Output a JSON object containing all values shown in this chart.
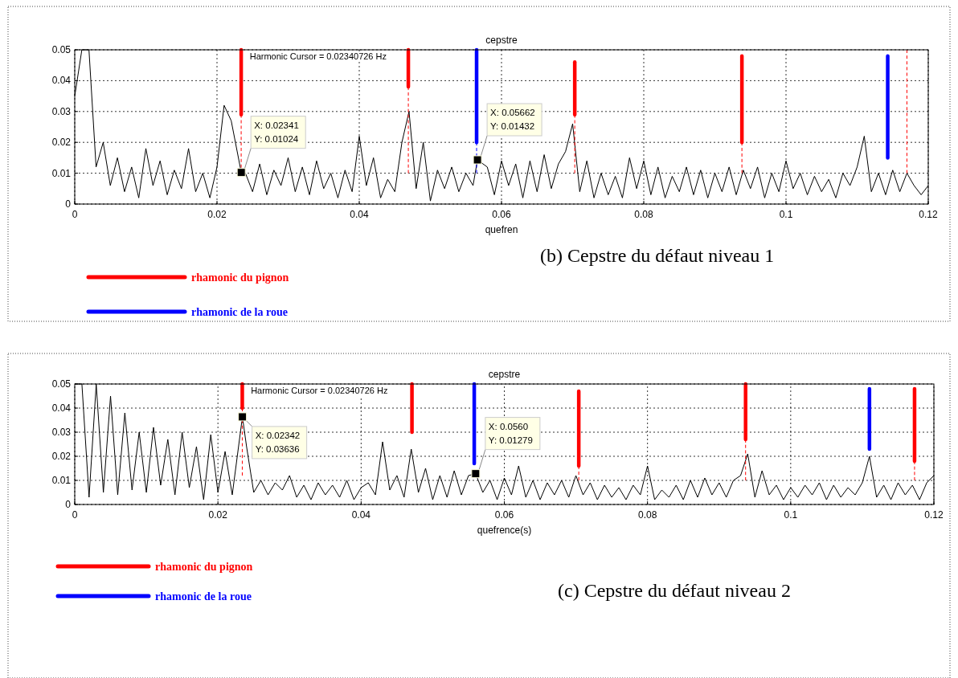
{
  "chart_data": [
    {
      "type": "line",
      "title": "cepstre",
      "xlabel": "quefren",
      "xlim": [
        0,
        0.12
      ],
      "ylim": [
        0,
        0.05
      ],
      "xticks": [
        0,
        {
          "value": 0.02,
          "label": "0.02"
        },
        {
          "value": 0.04,
          "label": "0.04"
        },
        {
          "value": 0.06,
          "label": "0.06"
        },
        {
          "value": 0.08,
          "label": "0.08"
        },
        {
          "value": 0.1,
          "label": "0.1"
        },
        {
          "value": 0.12,
          "label": "0.12"
        }
      ],
      "yticks": [
        0,
        {
          "value": 0.01,
          "label": "0.01"
        },
        {
          "value": 0.02,
          "label": "0.02"
        },
        {
          "value": 0.03,
          "label": "0.03"
        },
        {
          "value": 0.04,
          "label": "0.04"
        },
        {
          "value": 0.05,
          "label": "0.05"
        }
      ],
      "grid": true,
      "legend": "bottom left",
      "line_style": "solid",
      "marker": "none",
      "annotations": [
        "Harmonic Cursor = 0.02340726 Hz",
        "(b) Cepstre du défaut niveau 1",
        {
          "text": "X: 0.02341\nY: 0.01024",
          "x": 0.02341,
          "y": 0.01024
        },
        {
          "text": "X: 0.05662\nY: 0.01432",
          "x": 0.05662,
          "y": 0.01432
        }
      ],
      "series": [
        {
          "color": "#000000",
          "x": [
            0,
            0.001,
            0.002,
            0.003,
            0.004,
            0.005,
            0.006,
            0.007,
            0.008,
            0.009,
            0.01,
            0.011,
            0.012,
            0.013,
            0.014,
            0.015,
            0.016,
            0.017,
            0.018,
            0.019,
            0.02,
            0.021,
            0.022,
            0.02341,
            0.024,
            0.025,
            0.026,
            0.027,
            0.028,
            0.029,
            0.03,
            0.031,
            0.032,
            0.033,
            0.034,
            0.035,
            0.036,
            0.037,
            0.038,
            0.039,
            0.04,
            0.041,
            0.042,
            0.043,
            0.044,
            0.045,
            0.046,
            0.047,
            0.048,
            0.049,
            0.05,
            0.051,
            0.052,
            0.053,
            0.054,
            0.055,
            0.056,
            0.05662,
            0.058,
            0.059,
            0.06,
            0.061,
            0.062,
            0.063,
            0.064,
            0.065,
            0.066,
            0.067,
            0.068,
            0.069,
            0.07,
            0.071,
            0.072,
            0.073,
            0.074,
            0.075,
            0.076,
            0.077,
            0.078,
            0.079,
            0.08,
            0.081,
            0.082,
            0.083,
            0.084,
            0.085,
            0.086,
            0.087,
            0.088,
            0.089,
            0.09,
            0.091,
            0.092,
            0.093,
            0.094,
            0.095,
            0.096,
            0.097,
            0.098,
            0.099,
            0.1,
            0.101,
            0.102,
            0.103,
            0.104,
            0.105,
            0.106,
            0.107,
            0.108,
            0.109,
            0.11,
            0.111,
            0.112,
            0.113,
            0.114,
            0.115,
            0.116,
            0.117,
            0.118,
            0.119,
            0.12
          ],
          "values": [
            0.035,
            0.05,
            0.05,
            0.012,
            0.02,
            0.006,
            0.015,
            0.004,
            0.012,
            0.002,
            0.018,
            0.006,
            0.014,
            0.003,
            0.011,
            0.005,
            0.018,
            0.004,
            0.01,
            0.002,
            0.012,
            0.032,
            0.027,
            0.01024,
            0.01,
            0.004,
            0.013,
            0.003,
            0.011,
            0.006,
            0.015,
            0.004,
            0.012,
            0.003,
            0.014,
            0.005,
            0.01,
            0.002,
            0.011,
            0.004,
            0.022,
            0.006,
            0.015,
            0.002,
            0.008,
            0.004,
            0.02,
            0.03,
            0.005,
            0.02,
            0.001,
            0.011,
            0.005,
            0.012,
            0.004,
            0.01,
            0.006,
            0.01432,
            0.012,
            0.003,
            0.014,
            0.006,
            0.013,
            0.002,
            0.014,
            0.004,
            0.016,
            0.005,
            0.013,
            0.017,
            0.026,
            0.004,
            0.014,
            0.002,
            0.01,
            0.003,
            0.009,
            0.002,
            0.015,
            0.005,
            0.014,
            0.003,
            0.012,
            0.002,
            0.009,
            0.004,
            0.012,
            0.003,
            0.011,
            0.002,
            0.01,
            0.004,
            0.012,
            0.003,
            0.011,
            0.005,
            0.012,
            0.002,
            0.01,
            0.004,
            0.014,
            0.005,
            0.01,
            0.003,
            0.009,
            0.004,
            0.008,
            0.002,
            0.01,
            0.006,
            0.012,
            0.022,
            0.004,
            0.01,
            0.003,
            0.011,
            0.004,
            0.01,
            0.006,
            0.003,
            0.006
          ]
        },
        {
          "color": "#ff0000",
          "line_style": "dashed",
          "x": [
            0.0234,
            0.0234
          ],
          "values": [
            0.029,
            0.01
          ]
        },
        {
          "color": "#ff0000",
          "line_style": "dashed",
          "x": [
            0.0469,
            0.0469
          ],
          "values": [
            0.038,
            0.01
          ]
        },
        {
          "color": "#ff0000",
          "line_style": "dashed",
          "x": [
            0.0703,
            0.0703
          ],
          "values": [
            0.029,
            0.01
          ]
        },
        {
          "color": "#ff0000",
          "line_style": "dashed",
          "x": [
            0.0938,
            0.0938
          ],
          "values": [
            0.02,
            0.01
          ]
        },
        {
          "color": "#ff0000",
          "line_style": "dashed",
          "x": [
            0.117,
            0.117
          ],
          "values": [
            0.05,
            0.01
          ]
        },
        {
          "color": "#0000ff",
          "line_style": "dashed",
          "x": [
            0.0565,
            0.0565
          ],
          "values": [
            0.02,
            0.01
          ]
        },
        {
          "name": "rhamonic du pignon",
          "color": "#ff0000",
          "x": [
            0.0234,
            0.0234
          ],
          "values": [
            0.05,
            0.029
          ]
        },
        {
          "color": "#ff0000",
          "x": [
            0.0469,
            0.0469
          ],
          "values": [
            0.05,
            0.038
          ]
        },
        {
          "color": "#ff0000",
          "x": [
            0.0703,
            0.0703
          ],
          "values": [
            0.046,
            0.029
          ]
        },
        {
          "color": "#ff0000",
          "x": [
            0.0938,
            0.0938
          ],
          "values": [
            0.048,
            0.02
          ]
        },
        {
          "name": "rhamonic de la roue",
          "color": "#0000ff",
          "x": [
            0.0565,
            0.0565
          ],
          "values": [
            0.05,
            0.02
          ]
        },
        {
          "color": "#0000ff",
          "x": [
            0.1143,
            0.1143
          ],
          "values": [
            0.048,
            0.015
          ]
        }
      ]
    },
    {
      "type": "line",
      "title": "cepstre",
      "xlabel": "quefrence(s)",
      "xlim": [
        0,
        0.12
      ],
      "ylim": [
        0,
        0.05
      ],
      "xticks": [
        0,
        {
          "value": 0.02,
          "label": "0.02"
        },
        {
          "value": 0.04,
          "label": "0.04"
        },
        {
          "value": 0.06,
          "label": "0.06"
        },
        {
          "value": 0.08,
          "label": "0.08"
        },
        {
          "value": 0.1,
          "label": "0.1"
        },
        {
          "value": 0.12,
          "label": "0.12"
        }
      ],
      "yticks": [
        0,
        {
          "value": 0.01,
          "label": "0.01"
        },
        {
          "value": 0.02,
          "label": "0.02"
        },
        {
          "value": 0.03,
          "label": "0.03"
        },
        {
          "value": 0.04,
          "label": "0.04"
        },
        {
          "value": 0.05,
          "label": "0.05"
        }
      ],
      "grid": true,
      "legend": "bottom left",
      "line_style": "solid",
      "marker": "none",
      "annotations": [
        "Harmonic Cursor = 0.02340726 Hz",
        "(c)  Cepstre du défaut niveau 2",
        {
          "text": "X: 0.02342\nY: 0.03636",
          "x": 0.02342,
          "y": 0.03636
        },
        {
          "text": "X: 0.0560\nY: 0.01279",
          "x": 0.056,
          "y": 0.01279
        }
      ],
      "series": [
        {
          "color": "#000000",
          "x": [
            0,
            0.001,
            0.002,
            0.003,
            0.004,
            0.005,
            0.006,
            0.007,
            0.008,
            0.009,
            0.01,
            0.011,
            0.012,
            0.013,
            0.014,
            0.015,
            0.016,
            0.017,
            0.018,
            0.019,
            0.02,
            0.021,
            0.022,
            0.02342,
            0.024,
            0.025,
            0.026,
            0.027,
            0.028,
            0.029,
            0.03,
            0.031,
            0.032,
            0.033,
            0.034,
            0.035,
            0.036,
            0.037,
            0.038,
            0.039,
            0.04,
            0.041,
            0.042,
            0.043,
            0.044,
            0.045,
            0.046,
            0.047,
            0.048,
            0.049,
            0.05,
            0.051,
            0.052,
            0.053,
            0.054,
            0.055,
            0.056,
            0.057,
            0.058,
            0.059,
            0.06,
            0.061,
            0.062,
            0.063,
            0.064,
            0.065,
            0.066,
            0.067,
            0.068,
            0.069,
            0.07,
            0.071,
            0.072,
            0.073,
            0.074,
            0.075,
            0.076,
            0.077,
            0.078,
            0.079,
            0.08,
            0.081,
            0.082,
            0.083,
            0.084,
            0.085,
            0.086,
            0.087,
            0.088,
            0.089,
            0.09,
            0.091,
            0.092,
            0.093,
            0.094,
            0.095,
            0.096,
            0.097,
            0.098,
            0.099,
            0.1,
            0.101,
            0.102,
            0.103,
            0.104,
            0.105,
            0.106,
            0.107,
            0.108,
            0.109,
            0.11,
            0.111,
            0.112,
            0.113,
            0.114,
            0.115,
            0.116,
            0.117,
            0.118,
            0.119,
            0.12
          ],
          "values": [
            0.05,
            0.05,
            0.003,
            0.05,
            0.005,
            0.045,
            0.004,
            0.038,
            0.006,
            0.03,
            0.005,
            0.032,
            0.008,
            0.027,
            0.004,
            0.03,
            0.007,
            0.024,
            0.002,
            0.029,
            0.005,
            0.022,
            0.004,
            0.03636,
            0.024,
            0.005,
            0.01,
            0.004,
            0.009,
            0.006,
            0.012,
            0.003,
            0.008,
            0.002,
            0.009,
            0.004,
            0.008,
            0.003,
            0.01,
            0.002,
            0.007,
            0.009,
            0.004,
            0.026,
            0.006,
            0.012,
            0.003,
            0.023,
            0.005,
            0.015,
            0.002,
            0.012,
            0.003,
            0.014,
            0.004,
            0.012,
            0.01279,
            0.005,
            0.01,
            0.002,
            0.011,
            0.004,
            0.016,
            0.003,
            0.01,
            0.002,
            0.009,
            0.004,
            0.01,
            0.003,
            0.012,
            0.004,
            0.009,
            0.002,
            0.008,
            0.003,
            0.007,
            0.002,
            0.008,
            0.004,
            0.016,
            0.002,
            0.006,
            0.003,
            0.008,
            0.002,
            0.01,
            0.003,
            0.011,
            0.004,
            0.009,
            0.003,
            0.01,
            0.012,
            0.021,
            0.003,
            0.014,
            0.004,
            0.008,
            0.002,
            0.007,
            0.003,
            0.008,
            0.004,
            0.009,
            0.002,
            0.008,
            0.003,
            0.007,
            0.004,
            0.009,
            0.02,
            0.003,
            0.008,
            0.002,
            0.009,
            0.004,
            0.008,
            0.002,
            0.009,
            0.012
          ]
        },
        {
          "color": "#ff0000",
          "line_style": "dashed",
          "x": [
            0.0234,
            0.0234
          ],
          "values": [
            0.04,
            0.012
          ]
        },
        {
          "color": "#ff0000",
          "line_style": "dashed",
          "x": [
            0.0704,
            0.0704
          ],
          "values": [
            0.016,
            0.01
          ]
        },
        {
          "color": "#ff0000",
          "line_style": "dashed",
          "x": [
            0.0937,
            0.0937
          ],
          "values": [
            0.027,
            0.01
          ]
        },
        {
          "color": "#ff0000",
          "line_style": "dashed",
          "x": [
            0.1173,
            0.1173
          ],
          "values": [
            0.018,
            0.01
          ]
        },
        {
          "name": "rhamonic du pignon",
          "color": "#ff0000",
          "x": [
            0.0234,
            0.0234
          ],
          "values": [
            0.05,
            0.04
          ]
        },
        {
          "color": "#ff0000",
          "x": [
            0.0471,
            0.0471
          ],
          "values": [
            0.05,
            0.03
          ]
        },
        {
          "color": "#ff0000",
          "x": [
            0.0704,
            0.0704
          ],
          "values": [
            0.047,
            0.016
          ]
        },
        {
          "color": "#ff0000",
          "x": [
            0.0937,
            0.0937
          ],
          "values": [
            0.05,
            0.027
          ]
        },
        {
          "color": "#ff0000",
          "x": [
            0.1173,
            0.1173
          ],
          "values": [
            0.048,
            0.018
          ]
        },
        {
          "name": "rhamonic de la roue",
          "color": "#0000ff",
          "x": [
            0.0558,
            0.0558
          ],
          "values": [
            0.05,
            0.017
          ]
        },
        {
          "color": "#0000ff",
          "x": [
            0.111,
            0.111
          ],
          "values": [
            0.048,
            0.023
          ]
        }
      ]
    }
  ]
}
